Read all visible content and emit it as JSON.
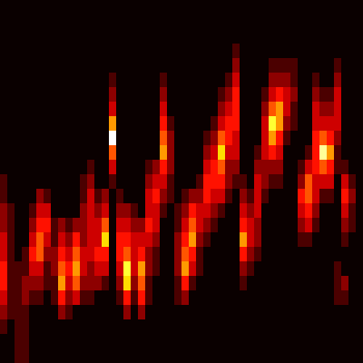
{
  "chart_data": {
    "type": "heatmap",
    "color": "hot",
    "tick_labels": false,
    "xlim": [
      0,
      50
    ],
    "ylim": [
      0,
      25
    ],
    "color_range": [
      0,
      10
    ],
    "cells": [
      [
        0,
        0,
        0,
        0,
        0,
        0,
        0,
        0,
        0,
        0,
        0,
        0,
        1,
        1,
        2,
        2,
        3,
        3,
        4,
        4,
        3,
        2,
        1,
        0,
        0
      ],
      [
        0,
        0,
        0,
        0,
        0,
        0,
        0,
        0,
        0,
        0,
        0,
        0,
        0,
        0,
        1,
        1,
        1,
        1,
        1,
        1,
        1,
        1,
        0,
        0,
        0
      ],
      [
        0,
        0,
        0,
        0,
        0,
        0,
        0,
        0,
        0,
        0,
        0,
        0,
        0,
        0,
        0,
        0,
        0,
        0,
        1,
        1,
        1,
        1,
        1,
        1,
        1
      ],
      [
        0,
        0,
        0,
        0,
        0,
        0,
        0,
        0,
        0,
        0,
        0,
        0,
        0,
        0,
        0,
        0,
        0,
        1,
        1,
        2,
        2,
        1,
        1,
        1,
        1
      ],
      [
        0,
        0,
        0,
        0,
        0,
        0,
        0,
        0,
        0,
        0,
        0,
        0,
        0,
        0,
        1,
        2,
        3,
        4,
        3,
        2,
        1,
        0,
        0,
        0,
        0
      ],
      [
        0,
        0,
        0,
        0,
        0,
        0,
        0,
        0,
        0,
        0,
        0,
        0,
        0,
        2,
        3,
        4,
        5,
        5,
        3,
        2,
        1,
        0,
        0,
        0,
        0
      ],
      [
        0,
        0,
        0,
        0,
        0,
        0,
        0,
        0,
        0,
        0,
        0,
        0,
        0,
        1,
        3,
        4,
        3,
        2,
        1,
        1,
        0,
        0,
        0,
        0,
        0
      ],
      [
        0,
        0,
        0,
        0,
        0,
        0,
        0,
        0,
        0,
        0,
        0,
        0,
        0,
        0,
        0,
        1,
        1,
        2,
        2,
        1,
        1,
        0,
        0,
        0,
        0
      ],
      [
        0,
        0,
        0,
        0,
        0,
        0,
        0,
        0,
        0,
        0,
        0,
        0,
        0,
        0,
        0,
        2,
        3,
        4,
        5,
        6,
        4,
        2,
        0,
        0,
        0
      ],
      [
        0,
        0,
        0,
        0,
        0,
        0,
        0,
        0,
        0,
        0,
        0,
        0,
        0,
        0,
        0,
        1,
        2,
        3,
        4,
        3,
        2,
        1,
        0,
        0,
        0
      ],
      [
        0,
        0,
        0,
        0,
        0,
        0,
        0,
        0,
        0,
        0,
        0,
        0,
        0,
        0,
        0,
        2,
        4,
        5,
        6,
        5,
        3,
        0,
        0,
        0,
        0
      ],
      [
        0,
        0,
        0,
        0,
        0,
        0,
        0,
        0,
        0,
        0,
        0,
        0,
        1,
        1,
        2,
        2,
        2,
        3,
        3,
        2,
        1,
        0,
        0,
        0,
        0
      ],
      [
        0,
        0,
        0,
        0,
        0,
        0,
        0,
        0,
        0,
        0,
        0,
        1,
        2,
        3,
        3,
        3,
        3,
        3,
        2,
        2,
        1,
        0,
        0,
        0,
        0
      ],
      [
        0,
        0,
        0,
        0,
        0,
        0,
        0,
        0,
        0,
        0,
        0,
        0,
        0,
        1,
        2,
        3,
        3,
        4,
        3,
        2,
        0,
        0,
        0,
        0,
        0
      ],
      [
        0,
        0,
        0,
        0,
        0,
        0,
        0,
        0,
        0,
        0,
        0,
        0,
        0,
        2,
        3,
        5,
        7,
        4,
        3,
        1,
        0,
        0,
        0,
        0,
        0
      ],
      [
        0,
        0,
        0,
        0,
        0,
        1,
        2,
        3,
        6,
        10,
        5,
        3,
        1,
        0,
        0,
        0,
        0,
        0,
        0,
        0,
        0,
        0,
        0,
        0,
        0
      ],
      [
        0,
        0,
        0,
        0,
        0,
        0,
        0,
        0,
        0,
        0,
        0,
        0,
        0,
        1,
        2,
        3,
        4,
        4,
        3,
        2,
        1,
        0,
        0,
        0,
        0
      ],
      [
        0,
        0,
        0,
        0,
        0,
        0,
        0,
        0,
        0,
        0,
        0,
        0,
        0,
        0,
        2,
        3,
        4,
        5,
        8,
        7,
        4,
        2,
        0,
        0,
        0
      ],
      [
        0,
        0,
        0,
        0,
        0,
        0,
        0,
        0,
        0,
        0,
        0,
        0,
        0,
        0,
        1,
        2,
        3,
        3,
        3,
        2,
        1,
        0,
        0,
        0,
        0
      ],
      [
        0,
        0,
        0,
        0,
        0,
        0,
        0,
        0,
        0,
        0,
        0,
        0,
        0,
        0,
        0,
        2,
        3,
        4,
        6,
        5,
        4,
        2,
        0,
        0,
        0
      ],
      [
        0,
        0,
        0,
        0,
        0,
        0,
        0,
        0,
        0,
        0,
        0,
        1,
        2,
        3,
        3,
        4,
        3,
        2,
        2,
        1,
        1,
        0,
        0,
        0,
        0
      ],
      [
        0,
        0,
        0,
        0,
        0,
        0,
        0,
        0,
        0,
        0,
        0,
        2,
        3,
        4,
        3,
        3,
        2,
        1,
        1,
        0,
        0,
        0,
        0,
        0,
        0
      ],
      [
        0,
        0,
        0,
        0,
        0,
        1,
        2,
        3,
        4,
        5,
        6,
        4,
        3,
        2,
        1,
        0,
        0,
        0,
        0,
        0,
        0,
        0,
        0,
        0,
        0
      ],
      [
        0,
        0,
        0,
        0,
        0,
        0,
        0,
        0,
        1,
        2,
        2,
        2,
        1,
        1,
        0,
        0,
        0,
        0,
        0,
        0,
        0,
        0,
        0,
        0,
        0
      ],
      [
        0,
        0,
        0,
        0,
        0,
        0,
        0,
        0,
        0,
        0,
        0,
        0,
        0,
        0,
        1,
        1,
        2,
        2,
        2,
        1,
        1,
        0,
        0,
        0,
        0
      ],
      [
        0,
        0,
        0,
        0,
        0,
        0,
        0,
        0,
        0,
        0,
        0,
        0,
        0,
        1,
        2,
        3,
        4,
        5,
        6,
        4,
        2,
        0,
        0,
        0,
        0
      ],
      [
        0,
        0,
        0,
        0,
        0,
        0,
        0,
        0,
        0,
        0,
        0,
        0,
        0,
        2,
        4,
        5,
        6,
        4,
        3,
        1,
        0,
        0,
        0,
        0,
        0
      ],
      [
        0,
        0,
        0,
        0,
        0,
        0,
        0,
        0,
        0,
        0,
        0,
        0,
        1,
        2,
        3,
        3,
        2,
        1,
        1,
        0,
        0,
        0,
        0,
        0,
        0
      ],
      [
        0,
        0,
        0,
        0,
        0,
        0,
        0,
        0,
        0,
        1,
        2,
        3,
        4,
        4,
        3,
        2,
        1,
        0,
        0,
        0,
        0,
        0,
        0,
        0,
        0
      ],
      [
        0,
        0,
        0,
        0,
        0,
        0,
        0,
        0,
        1,
        2,
        3,
        4,
        4,
        3,
        2,
        1,
        0,
        0,
        0,
        0,
        0,
        0,
        0,
        0,
        0
      ],
      [
        0,
        0,
        0,
        0,
        0,
        0,
        1,
        2,
        3,
        5,
        7,
        5,
        4,
        3,
        1,
        0,
        0,
        0,
        0,
        0,
        0,
        0,
        0,
        0,
        0
      ],
      [
        0,
        0,
        0,
        0,
        0,
        1,
        2,
        3,
        4,
        4,
        3,
        2,
        2,
        1,
        0,
        0,
        0,
        0,
        0,
        0,
        0,
        0,
        0,
        0,
        0
      ],
      [
        0,
        0,
        0,
        1,
        2,
        3,
        4,
        4,
        4,
        3,
        3,
        2,
        1,
        0,
        0,
        0,
        0,
        0,
        0,
        0,
        0,
        0,
        0,
        0,
        0
      ],
      [
        0,
        0,
        0,
        0,
        0,
        0,
        0,
        0,
        0,
        0,
        0,
        0,
        1,
        2,
        3,
        4,
        6,
        4,
        2,
        1,
        0,
        0,
        0,
        0,
        0
      ],
      [
        0,
        0,
        0,
        0,
        0,
        0,
        0,
        0,
        0,
        0,
        0,
        0,
        0,
        1,
        2,
        3,
        3,
        2,
        1,
        0,
        0,
        0,
        0,
        0,
        0
      ],
      [
        0,
        0,
        0,
        0,
        0,
        0,
        0,
        0,
        0,
        0,
        1,
        2,
        3,
        3,
        3,
        2,
        2,
        1,
        0,
        0,
        0,
        0,
        0,
        0,
        0
      ],
      [
        0,
        0,
        0,
        0,
        0,
        0,
        1,
        2,
        3,
        3,
        3,
        2,
        2,
        1,
        0,
        0,
        0,
        0,
        0,
        0,
        0,
        0,
        0,
        0,
        0
      ],
      [
        0,
        0,
        0,
        0,
        1,
        2,
        3,
        5,
        8,
        6,
        4,
        2,
        1,
        0,
        0,
        0,
        0,
        0,
        0,
        0,
        0,
        0,
        0,
        0,
        0
      ],
      [
        0,
        0,
        0,
        0,
        1,
        2,
        4,
        6,
        6,
        4,
        3,
        2,
        1,
        0,
        0,
        0,
        0,
        0,
        0,
        0,
        0,
        0,
        0,
        0,
        0
      ],
      [
        0,
        0,
        0,
        0,
        1,
        2,
        3,
        3,
        2,
        1,
        0,
        0,
        0,
        0,
        0,
        0,
        0,
        0,
        0,
        0,
        0,
        0,
        0,
        0,
        0
      ],
      [
        0,
        0,
        0,
        0,
        1,
        1,
        2,
        1,
        1,
        0,
        0,
        0,
        0,
        0,
        0,
        0,
        0,
        0,
        0,
        0,
        0,
        0,
        0,
        0,
        0
      ],
      [
        0,
        0,
        0,
        0,
        0,
        0,
        0,
        0,
        0,
        0,
        0,
        1,
        2,
        4,
        3,
        2,
        1,
        0,
        0,
        0,
        0,
        0,
        0,
        0,
        0
      ],
      [
        0,
        0,
        0,
        0,
        0,
        0,
        0,
        0,
        0,
        0,
        1,
        3,
        5,
        5,
        4,
        3,
        1,
        0,
        0,
        0,
        0,
        0,
        0,
        0,
        0
      ],
      [
        0,
        0,
        0,
        0,
        0,
        1,
        2,
        3,
        3,
        4,
        4,
        4,
        3,
        3,
        2,
        1,
        0,
        0,
        0,
        0,
        0,
        0,
        0,
        0,
        0
      ],
      [
        0,
        0,
        0,
        0,
        0,
        0,
        1,
        2,
        3,
        5,
        9,
        5,
        3,
        1,
        0,
        0,
        0,
        0,
        0,
        0,
        0,
        0,
        0,
        0,
        0
      ],
      [
        0,
        0,
        0,
        0,
        0,
        0,
        1,
        2,
        3,
        4,
        6,
        4,
        3,
        1,
        0,
        0,
        0,
        0,
        0,
        0,
        0,
        0,
        0,
        0,
        0
      ],
      [
        0,
        0,
        0,
        0,
        1,
        2,
        3,
        3,
        3,
        2,
        1,
        1,
        0,
        0,
        0,
        0,
        0,
        0,
        1,
        1,
        1,
        0,
        0,
        0,
        0
      ],
      [
        0,
        0,
        0,
        0,
        0,
        0,
        0,
        0,
        0,
        0,
        0,
        1,
        3,
        4,
        3,
        2,
        1,
        0,
        0,
        2,
        1,
        0,
        0,
        0,
        0
      ],
      [
        0,
        0,
        0,
        0,
        0,
        0,
        0,
        0,
        0,
        0,
        0,
        0,
        1,
        2,
        1,
        1,
        0,
        0,
        0,
        0,
        0,
        0,
        0,
        0,
        0
      ],
      [
        0,
        0,
        0,
        0,
        0,
        0,
        0,
        0,
        0,
        0,
        0,
        0,
        0,
        0,
        0,
        0,
        0,
        0,
        0,
        0,
        0,
        0,
        0,
        0,
        0
      ]
    ]
  }
}
